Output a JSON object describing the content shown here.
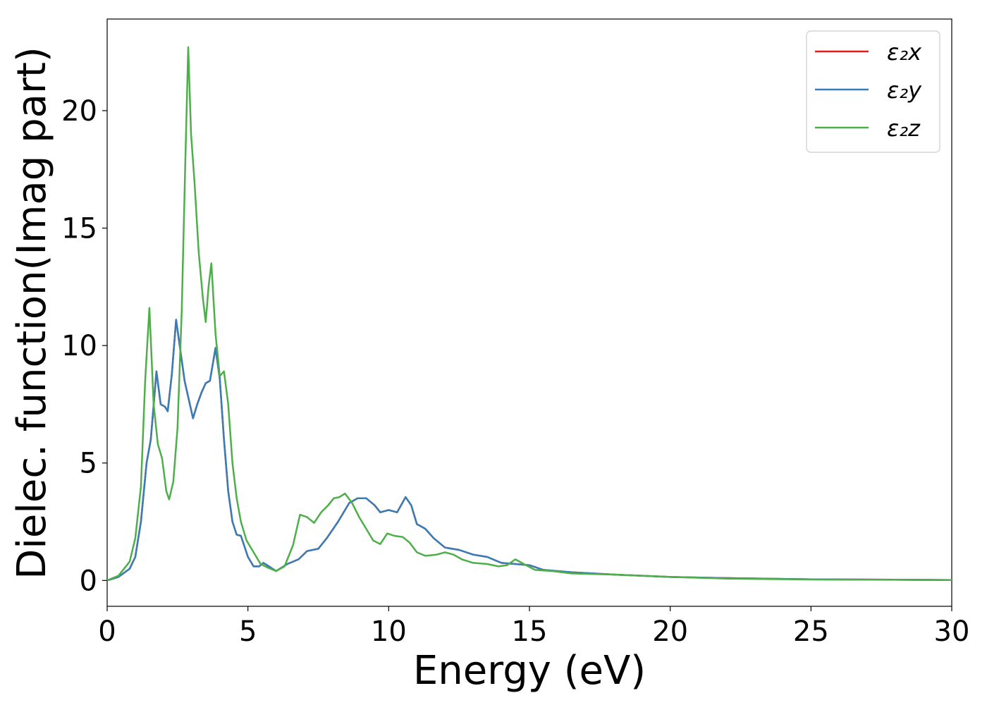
{
  "chart_data": {
    "type": "line",
    "title": "",
    "xlabel": "Energy (eV)",
    "ylabel": "Dielec. function(Imag part)",
    "xlim": [
      0,
      30
    ],
    "ylim": [
      -1.1,
      23.9
    ],
    "x_ticks": [
      0,
      5,
      10,
      15,
      20,
      25,
      30
    ],
    "y_ticks": [
      0,
      5,
      10,
      15,
      20
    ],
    "grid": false,
    "legend_position": "top-right",
    "series": [
      {
        "name": "ε₂x",
        "color": "#e41a1c",
        "points": [
          [
            0,
            0
          ],
          [
            0.4,
            0.15
          ],
          [
            0.8,
            0.5
          ],
          [
            1.0,
            1.0
          ],
          [
            1.2,
            2.5
          ],
          [
            1.4,
            5.0
          ],
          [
            1.55,
            6.0
          ],
          [
            1.75,
            8.9
          ],
          [
            1.9,
            7.5
          ],
          [
            2.05,
            7.4
          ],
          [
            2.15,
            7.2
          ],
          [
            2.3,
            8.8
          ],
          [
            2.45,
            11.1
          ],
          [
            2.6,
            9.8
          ],
          [
            2.75,
            8.5
          ],
          [
            2.9,
            7.7
          ],
          [
            3.05,
            6.9
          ],
          [
            3.2,
            7.5
          ],
          [
            3.35,
            8.0
          ],
          [
            3.5,
            8.4
          ],
          [
            3.65,
            8.5
          ],
          [
            3.85,
            9.9
          ],
          [
            4.0,
            8.6
          ],
          [
            4.15,
            6.0
          ],
          [
            4.3,
            3.8
          ],
          [
            4.45,
            2.5
          ],
          [
            4.6,
            1.95
          ],
          [
            4.75,
            1.9
          ],
          [
            5.0,
            1.0
          ],
          [
            5.2,
            0.6
          ],
          [
            5.4,
            0.6
          ],
          [
            5.55,
            0.75
          ],
          [
            5.75,
            0.6
          ],
          [
            6.0,
            0.4
          ],
          [
            6.4,
            0.7
          ],
          [
            6.8,
            0.9
          ],
          [
            7.1,
            1.25
          ],
          [
            7.5,
            1.35
          ],
          [
            7.8,
            1.8
          ],
          [
            8.2,
            2.5
          ],
          [
            8.6,
            3.3
          ],
          [
            8.9,
            3.5
          ],
          [
            9.2,
            3.5
          ],
          [
            9.5,
            3.2
          ],
          [
            9.7,
            2.9
          ],
          [
            10.0,
            3.0
          ],
          [
            10.3,
            2.9
          ],
          [
            10.6,
            3.55
          ],
          [
            10.8,
            3.2
          ],
          [
            11.0,
            2.4
          ],
          [
            11.3,
            2.2
          ],
          [
            11.6,
            1.8
          ],
          [
            12.0,
            1.4
          ],
          [
            12.5,
            1.3
          ],
          [
            13.0,
            1.1
          ],
          [
            13.5,
            1.0
          ],
          [
            14.0,
            0.75
          ],
          [
            14.5,
            0.7
          ],
          [
            15.0,
            0.65
          ],
          [
            15.5,
            0.45
          ],
          [
            16.5,
            0.35
          ],
          [
            18.0,
            0.25
          ],
          [
            20.0,
            0.15
          ],
          [
            22.0,
            0.1
          ],
          [
            25.0,
            0.05
          ],
          [
            30.0,
            0.02
          ]
        ]
      },
      {
        "name": "ε₂y",
        "color": "#377eb8",
        "points": [
          [
            0,
            0
          ],
          [
            0.4,
            0.15
          ],
          [
            0.8,
            0.5
          ],
          [
            1.0,
            1.0
          ],
          [
            1.2,
            2.5
          ],
          [
            1.4,
            5.0
          ],
          [
            1.55,
            6.0
          ],
          [
            1.75,
            8.9
          ],
          [
            1.9,
            7.5
          ],
          [
            2.05,
            7.4
          ],
          [
            2.15,
            7.2
          ],
          [
            2.3,
            8.8
          ],
          [
            2.45,
            11.1
          ],
          [
            2.6,
            9.8
          ],
          [
            2.75,
            8.5
          ],
          [
            2.9,
            7.7
          ],
          [
            3.05,
            6.9
          ],
          [
            3.2,
            7.5
          ],
          [
            3.35,
            8.0
          ],
          [
            3.5,
            8.4
          ],
          [
            3.65,
            8.5
          ],
          [
            3.85,
            9.9
          ],
          [
            4.0,
            8.6
          ],
          [
            4.15,
            6.0
          ],
          [
            4.3,
            3.8
          ],
          [
            4.45,
            2.5
          ],
          [
            4.6,
            1.95
          ],
          [
            4.75,
            1.9
          ],
          [
            5.0,
            1.0
          ],
          [
            5.2,
            0.6
          ],
          [
            5.4,
            0.6
          ],
          [
            5.55,
            0.75
          ],
          [
            5.75,
            0.6
          ],
          [
            6.0,
            0.4
          ],
          [
            6.4,
            0.7
          ],
          [
            6.8,
            0.9
          ],
          [
            7.1,
            1.25
          ],
          [
            7.5,
            1.35
          ],
          [
            7.8,
            1.8
          ],
          [
            8.2,
            2.5
          ],
          [
            8.6,
            3.3
          ],
          [
            8.9,
            3.5
          ],
          [
            9.2,
            3.5
          ],
          [
            9.5,
            3.2
          ],
          [
            9.7,
            2.9
          ],
          [
            10.0,
            3.0
          ],
          [
            10.3,
            2.9
          ],
          [
            10.6,
            3.55
          ],
          [
            10.8,
            3.2
          ],
          [
            11.0,
            2.4
          ],
          [
            11.3,
            2.2
          ],
          [
            11.6,
            1.8
          ],
          [
            12.0,
            1.4
          ],
          [
            12.5,
            1.3
          ],
          [
            13.0,
            1.1
          ],
          [
            13.5,
            1.0
          ],
          [
            14.0,
            0.75
          ],
          [
            14.5,
            0.7
          ],
          [
            15.0,
            0.65
          ],
          [
            15.5,
            0.45
          ],
          [
            16.5,
            0.35
          ],
          [
            18.0,
            0.25
          ],
          [
            20.0,
            0.15
          ],
          [
            22.0,
            0.1
          ],
          [
            25.0,
            0.05
          ],
          [
            30.0,
            0.02
          ]
        ]
      },
      {
        "name": "ε₂z",
        "color": "#4daf4a",
        "points": [
          [
            0,
            0
          ],
          [
            0.4,
            0.2
          ],
          [
            0.8,
            0.8
          ],
          [
            1.0,
            1.8
          ],
          [
            1.2,
            4.0
          ],
          [
            1.35,
            8.5
          ],
          [
            1.5,
            11.6
          ],
          [
            1.65,
            7.5
          ],
          [
            1.8,
            5.8
          ],
          [
            1.95,
            5.2
          ],
          [
            2.1,
            3.8
          ],
          [
            2.2,
            3.45
          ],
          [
            2.35,
            4.2
          ],
          [
            2.5,
            6.5
          ],
          [
            2.65,
            11.5
          ],
          [
            2.78,
            18.0
          ],
          [
            2.88,
            22.7
          ],
          [
            2.98,
            19.0
          ],
          [
            3.1,
            17.0
          ],
          [
            3.25,
            14.0
          ],
          [
            3.4,
            12.0
          ],
          [
            3.5,
            11.0
          ],
          [
            3.6,
            12.5
          ],
          [
            3.7,
            13.5
          ],
          [
            3.85,
            10.5
          ],
          [
            4.0,
            8.7
          ],
          [
            4.15,
            8.9
          ],
          [
            4.3,
            7.5
          ],
          [
            4.45,
            5.0
          ],
          [
            4.6,
            3.5
          ],
          [
            4.75,
            2.5
          ],
          [
            4.95,
            1.7
          ],
          [
            5.2,
            1.2
          ],
          [
            5.45,
            0.7
          ],
          [
            5.7,
            0.55
          ],
          [
            6.0,
            0.4
          ],
          [
            6.3,
            0.6
          ],
          [
            6.6,
            1.5
          ],
          [
            6.85,
            2.8
          ],
          [
            7.1,
            2.7
          ],
          [
            7.35,
            2.45
          ],
          [
            7.6,
            2.9
          ],
          [
            7.85,
            3.2
          ],
          [
            8.05,
            3.5
          ],
          [
            8.25,
            3.55
          ],
          [
            8.45,
            3.7
          ],
          [
            8.7,
            3.3
          ],
          [
            8.95,
            2.7
          ],
          [
            9.2,
            2.2
          ],
          [
            9.45,
            1.7
          ],
          [
            9.7,
            1.55
          ],
          [
            9.95,
            2.0
          ],
          [
            10.2,
            1.9
          ],
          [
            10.5,
            1.85
          ],
          [
            10.75,
            1.6
          ],
          [
            11.0,
            1.2
          ],
          [
            11.3,
            1.05
          ],
          [
            11.7,
            1.1
          ],
          [
            12.0,
            1.2
          ],
          [
            12.3,
            1.1
          ],
          [
            12.6,
            0.9
          ],
          [
            13.0,
            0.75
          ],
          [
            13.5,
            0.7
          ],
          [
            13.9,
            0.6
          ],
          [
            14.2,
            0.65
          ],
          [
            14.5,
            0.9
          ],
          [
            14.8,
            0.7
          ],
          [
            15.2,
            0.45
          ],
          [
            15.8,
            0.4
          ],
          [
            16.5,
            0.3
          ],
          [
            18.0,
            0.25
          ],
          [
            20.0,
            0.15
          ],
          [
            22.0,
            0.08
          ],
          [
            25.0,
            0.04
          ],
          [
            30.0,
            0.02
          ]
        ]
      }
    ]
  }
}
